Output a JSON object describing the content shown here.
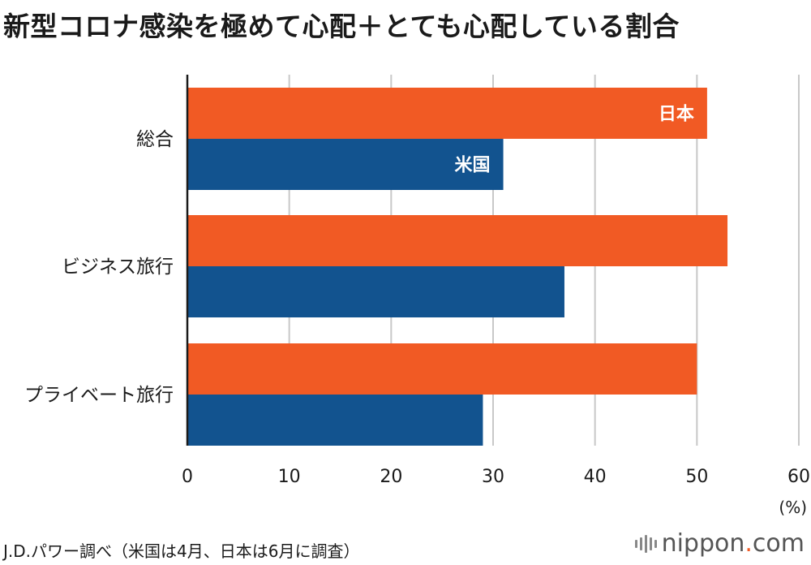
{
  "title": "新型コロナ感染を極めて心配＋とても心配している割合",
  "source": "J.D.パワー調べ（米国は4月、日本は6月に調査）",
  "brand": {
    "name_a": "nippon",
    "dot": ".",
    "name_b": "com"
  },
  "colors": {
    "japan": "#f15a24",
    "us": "#12538f",
    "grid": "#c8c8c8",
    "axis": "#1a1a1a"
  },
  "chart_data": {
    "type": "bar",
    "orientation": "horizontal",
    "categories": [
      "総合",
      "ビジネス旅行",
      "プライベート旅行"
    ],
    "series": [
      {
        "name": "日本",
        "values": [
          51,
          53,
          50
        ]
      },
      {
        "name": "米国",
        "values": [
          31,
          37,
          29
        ]
      }
    ],
    "xlim": [
      0,
      60
    ],
    "xticks": [
      0,
      10,
      20,
      30,
      40,
      50,
      60
    ],
    "xunit": "(%)",
    "grid": true
  }
}
